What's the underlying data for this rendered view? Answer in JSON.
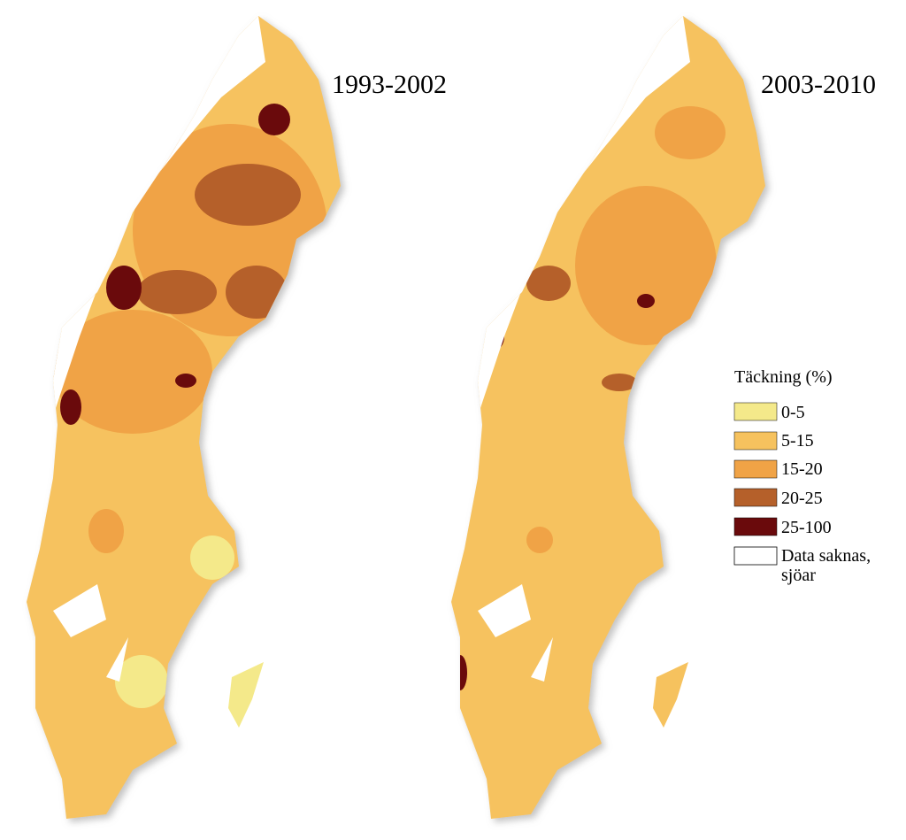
{
  "maps": [
    {
      "title": "1993-2002"
    },
    {
      "title": "2003-2010"
    }
  ],
  "legend": {
    "title": "Täckning (%)",
    "items": [
      {
        "label": "0-5",
        "color": "#f4e98a"
      },
      {
        "label": "5-15",
        "color": "#f6c25e"
      },
      {
        "label": "15-20",
        "color": "#f0a346"
      },
      {
        "label": "20-25",
        "color": "#b5602a"
      },
      {
        "label": "25-100",
        "color": "#6a0a0c"
      },
      {
        "label": [
          "Data saknas,",
          "sjöar"
        ],
        "color": "#ffffff"
      }
    ]
  }
}
